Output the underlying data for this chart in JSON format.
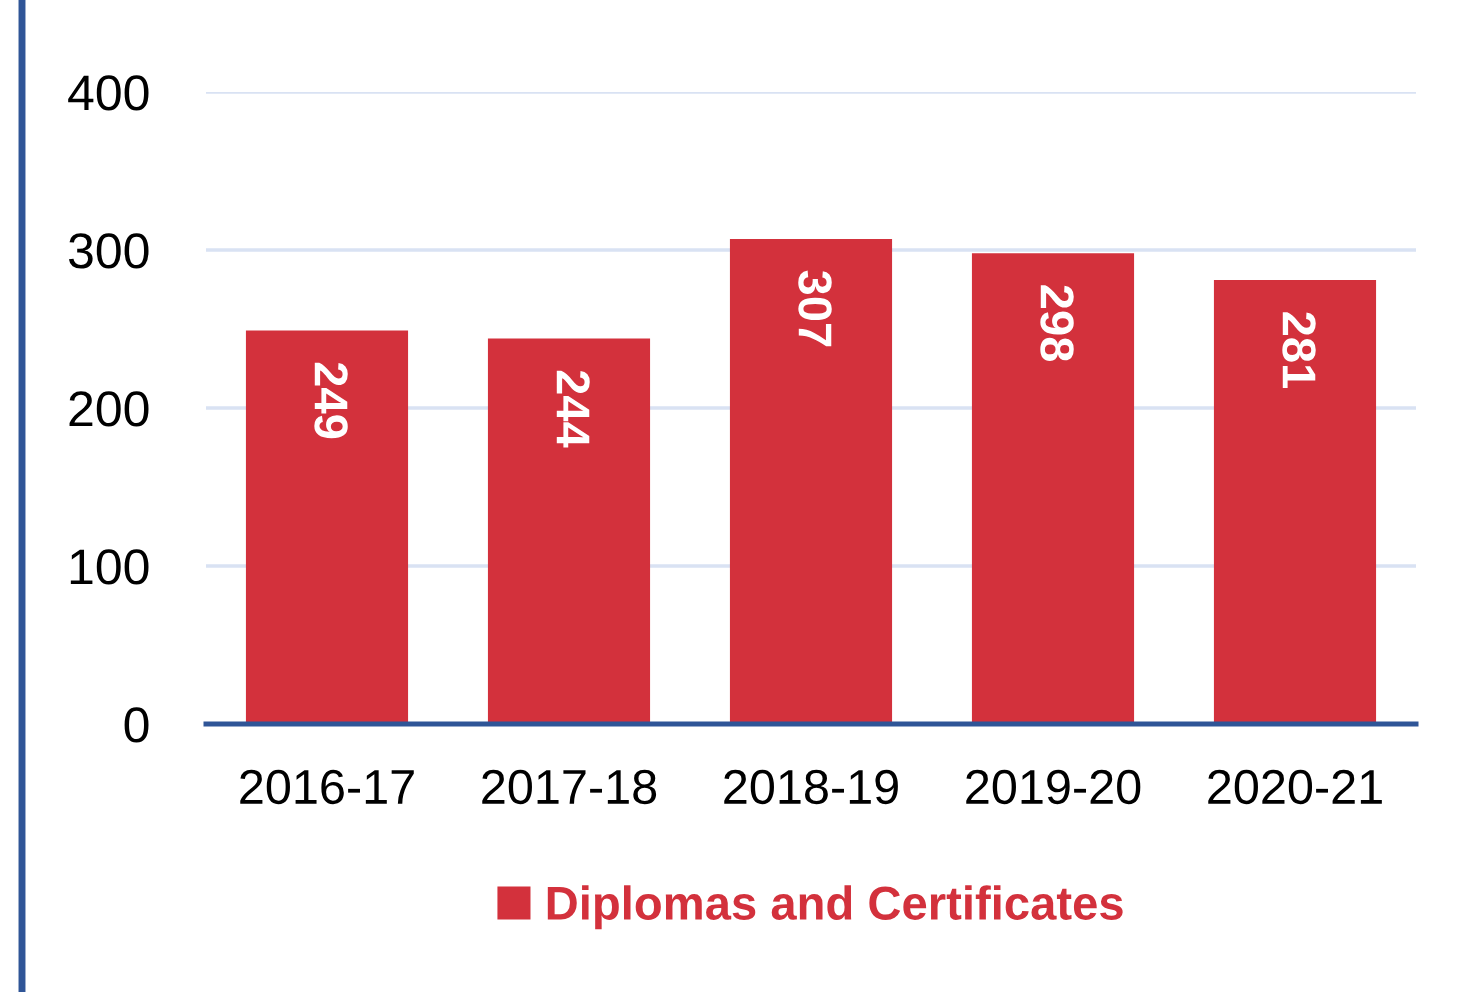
{
  "chart_data": {
    "type": "bar",
    "categories": [
      "2016-17",
      "2017-18",
      "2018-19",
      "2019-20",
      "2020-21"
    ],
    "series": [
      {
        "name": "Diplomas and Certificates",
        "color": "#d3313c",
        "values": [
          249,
          244,
          307,
          298,
          281
        ]
      }
    ],
    "ylim": [
      0,
      400
    ],
    "yticks": [
      0,
      100,
      200,
      300,
      400
    ],
    "grid": "y",
    "legend": "bottom",
    "data_labels": true
  }
}
